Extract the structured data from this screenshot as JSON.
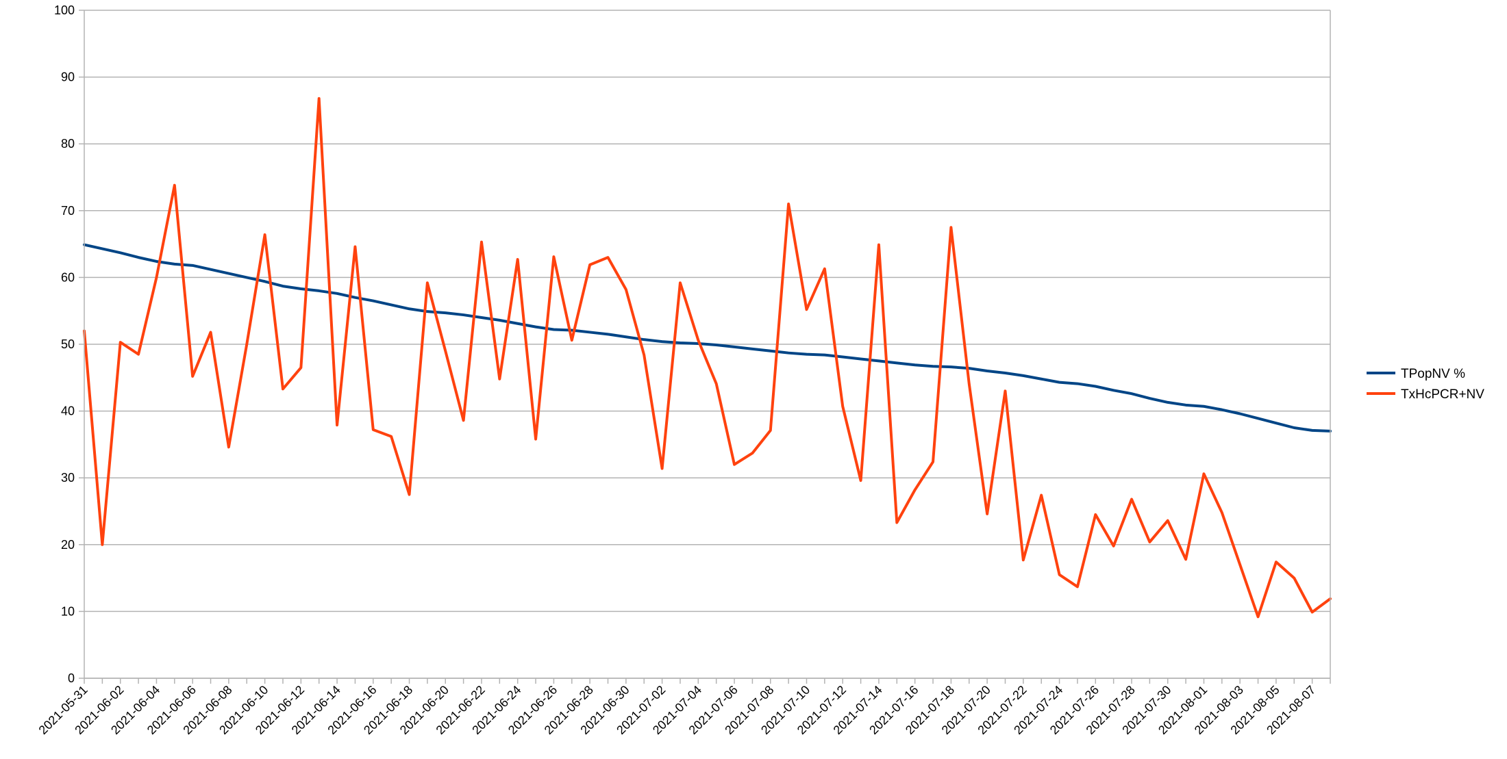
{
  "chart_data": {
    "type": "line",
    "x": [
      "2021-05-31",
      "2021-06-01",
      "2021-06-02",
      "2021-06-03",
      "2021-06-04",
      "2021-06-05",
      "2021-06-06",
      "2021-06-07",
      "2021-06-08",
      "2021-06-09",
      "2021-06-10",
      "2021-06-11",
      "2021-06-12",
      "2021-06-13",
      "2021-06-14",
      "2021-06-15",
      "2021-06-16",
      "2021-06-17",
      "2021-06-18",
      "2021-06-19",
      "2021-06-20",
      "2021-06-21",
      "2021-06-22",
      "2021-06-23",
      "2021-06-24",
      "2021-06-25",
      "2021-06-26",
      "2021-06-27",
      "2021-06-28",
      "2021-06-29",
      "2021-06-30",
      "2021-07-01",
      "2021-07-02",
      "2021-07-03",
      "2021-07-04",
      "2021-07-05",
      "2021-07-06",
      "2021-07-07",
      "2021-07-08",
      "2021-07-09",
      "2021-07-10",
      "2021-07-11",
      "2021-07-12",
      "2021-07-13",
      "2021-07-14",
      "2021-07-15",
      "2021-07-16",
      "2021-07-17",
      "2021-07-18",
      "2021-07-19",
      "2021-07-20",
      "2021-07-21",
      "2021-07-22",
      "2021-07-23",
      "2021-07-24",
      "2021-07-25",
      "2021-07-26",
      "2021-07-27",
      "2021-07-28",
      "2021-07-29",
      "2021-07-30",
      "2021-07-31",
      "2021-08-01",
      "2021-08-02",
      "2021-08-03",
      "2021-08-04",
      "2021-08-05",
      "2021-08-06",
      "2021-08-07",
      "2021-08-08"
    ],
    "xtick_labels": [
      "2021-05-31",
      "2021-06-02",
      "2021-06-04",
      "2021-06-06",
      "2021-06-08",
      "2021-06-10",
      "2021-06-12",
      "2021-06-14",
      "2021-06-16",
      "2021-06-18",
      "2021-06-20",
      "2021-06-22",
      "2021-06-24",
      "2021-06-26",
      "2021-06-28",
      "2021-06-30",
      "2021-07-02",
      "2021-07-04",
      "2021-07-06",
      "2021-07-08",
      "2021-07-10",
      "2021-07-12",
      "2021-07-14",
      "2021-07-16",
      "2021-07-18",
      "2021-07-20",
      "2021-07-22",
      "2021-07-24",
      "2021-07-26",
      "2021-07-28",
      "2021-07-30",
      "2021-08-01",
      "2021-08-03",
      "2021-08-05",
      "2021-08-07"
    ],
    "yticks": [
      0,
      10,
      20,
      30,
      40,
      50,
      60,
      70,
      80,
      90,
      100
    ],
    "ylim": [
      0,
      100
    ],
    "title": "",
    "xlabel": "",
    "ylabel": "",
    "grid": "horizontal",
    "legend_position": "right",
    "series": [
      {
        "name": "TPopNV %",
        "color": "#004586",
        "values": [
          64.9,
          64.3,
          63.7,
          63.0,
          62.4,
          62.0,
          61.8,
          61.2,
          60.6,
          60.0,
          59.4,
          58.7,
          58.3,
          58.0,
          57.6,
          57.0,
          56.5,
          55.9,
          55.3,
          54.9,
          54.7,
          54.4,
          54.0,
          53.6,
          53.1,
          52.6,
          52.2,
          52.1,
          51.8,
          51.5,
          51.1,
          50.7,
          50.4,
          50.2,
          50.1,
          49.9,
          49.6,
          49.3,
          49.0,
          48.7,
          48.5,
          48.4,
          48.1,
          47.8,
          47.5,
          47.2,
          46.9,
          46.7,
          46.6,
          46.4,
          46.0,
          45.7,
          45.3,
          44.8,
          44.3,
          44.1,
          43.7,
          43.1,
          42.6,
          41.9,
          41.3,
          40.9,
          40.7,
          40.2,
          39.6,
          38.9,
          38.2,
          37.5,
          37.1,
          37.0
        ]
      },
      {
        "name": "TxHcPCR+NV",
        "color": "#ff420e",
        "values": [
          52.0,
          20.0,
          50.3,
          48.5,
          60.0,
          73.8,
          45.2,
          51.8,
          34.6,
          50.0,
          66.4,
          43.3,
          46.5,
          86.8,
          37.9,
          64.6,
          37.2,
          36.2,
          27.5,
          59.2,
          49.0,
          38.6,
          65.3,
          44.8,
          62.7,
          35.8,
          63.1,
          50.6,
          61.9,
          63.0,
          58.2,
          48.4,
          31.4,
          59.2,
          50.6,
          44.1,
          32.0,
          33.7,
          37.1,
          71.0,
          55.2,
          61.3,
          40.7,
          29.6,
          64.9,
          23.3,
          28.2,
          32.4,
          67.5,
          44.1,
          24.6,
          43.0,
          17.7,
          27.4,
          15.5,
          13.7,
          24.5,
          19.8,
          26.8,
          20.4,
          23.6,
          17.8,
          30.6,
          24.8,
          17.0,
          9.2,
          17.4,
          15.0,
          9.9,
          11.9
        ]
      }
    ]
  }
}
